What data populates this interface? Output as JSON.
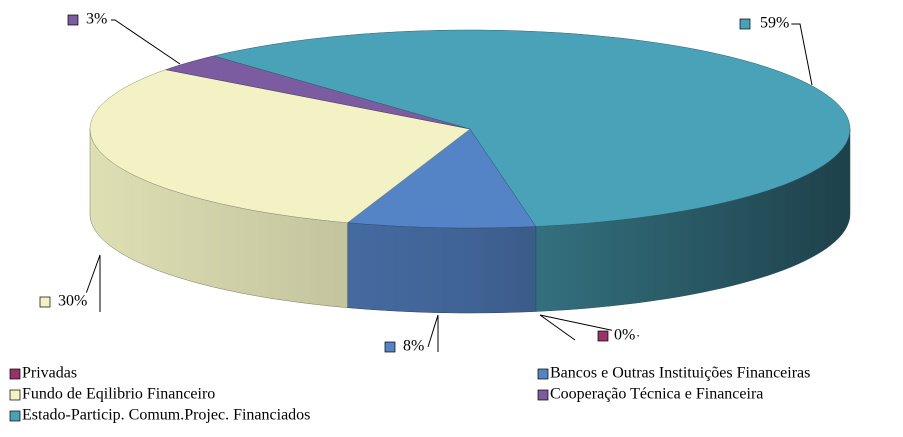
{
  "chart_data": {
    "type": "pie",
    "categories": [
      "Privadas",
      "Bancos e Outras Instituições Financeiras",
      "Fundo de Eqilibrio Financeiro",
      "Cooperação Técnica e Financeira",
      "Estado-Particip. Comum.Projec. Financiados"
    ],
    "values": [
      0,
      8,
      30,
      3,
      59
    ],
    "value_labels": [
      "0%",
      "8%",
      "30%",
      "3%",
      "59%"
    ],
    "colors": [
      "#993366",
      "#5584c6",
      "#f2f2c4",
      "#7b5ca0",
      "#4aa2b8"
    ],
    "legend": "bottom"
  }
}
